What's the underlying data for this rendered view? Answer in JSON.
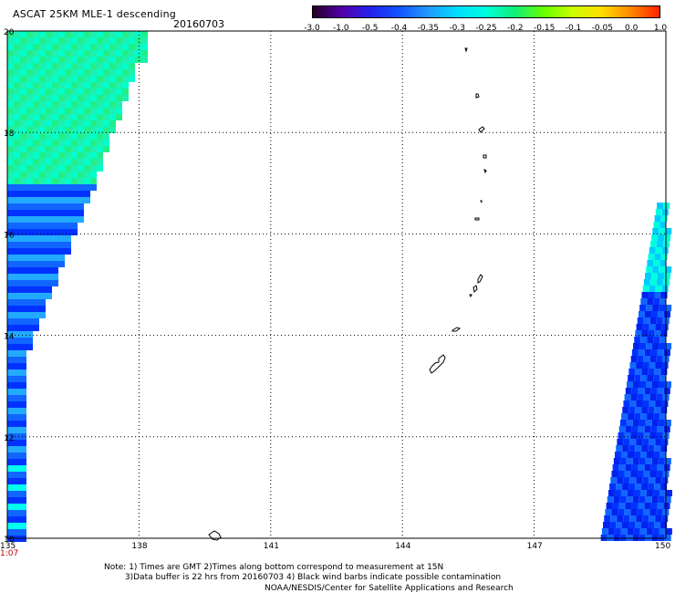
{
  "header": {
    "title": "ASCAT 25KM MLE-1 descending",
    "date": "20160703"
  },
  "colorbar": {
    "tick_labels": [
      "-3.0",
      "-1.0",
      "-0.5",
      "-0.4",
      "-0.35",
      "-0.3",
      "-0.25",
      "-0.2",
      "-0.15",
      "-0.1",
      "-0.05",
      "0.0",
      "1.0"
    ],
    "colors": [
      "#220022",
      "#5500aa",
      "#2222ee",
      "#1155ff",
      "#2299ff",
      "#00ddff",
      "#00ffdd",
      "#11ee77",
      "#66ff00",
      "#ccff00",
      "#ffdd00",
      "#ff8800",
      "#ff2200"
    ]
  },
  "map": {
    "lat_labels": [
      "20",
      "18",
      "16",
      "14",
      "12",
      "10"
    ],
    "lon_labels": [
      "135",
      "138",
      "141",
      "144",
      "147",
      "150"
    ],
    "lat_range": [
      10,
      20
    ],
    "lon_range": [
      135,
      150
    ],
    "grid": "dotted",
    "swath_left_colors": [
      "#1ff0b0",
      "#00ffcc",
      "#22ee88",
      "#22aaff",
      "#1166ff",
      "#0033ff",
      "#00ffee"
    ],
    "swath_right_colors": [
      "#00ffdd",
      "#00ccff",
      "#1166ff",
      "#0033ff",
      "#0022ee"
    ],
    "coastline_color": "#000000"
  },
  "timestamp": "1:07",
  "notes": {
    "line1": "Note: 1) Times are GMT 2)Times along bottom correspond to measurement at 15N",
    "line2": "3)Data buffer is 22 hrs from 20160703 4) Black wind barbs indicate possible contamination",
    "credit": "NOAA/NESDIS/Center for Satellite Applications and Research"
  }
}
